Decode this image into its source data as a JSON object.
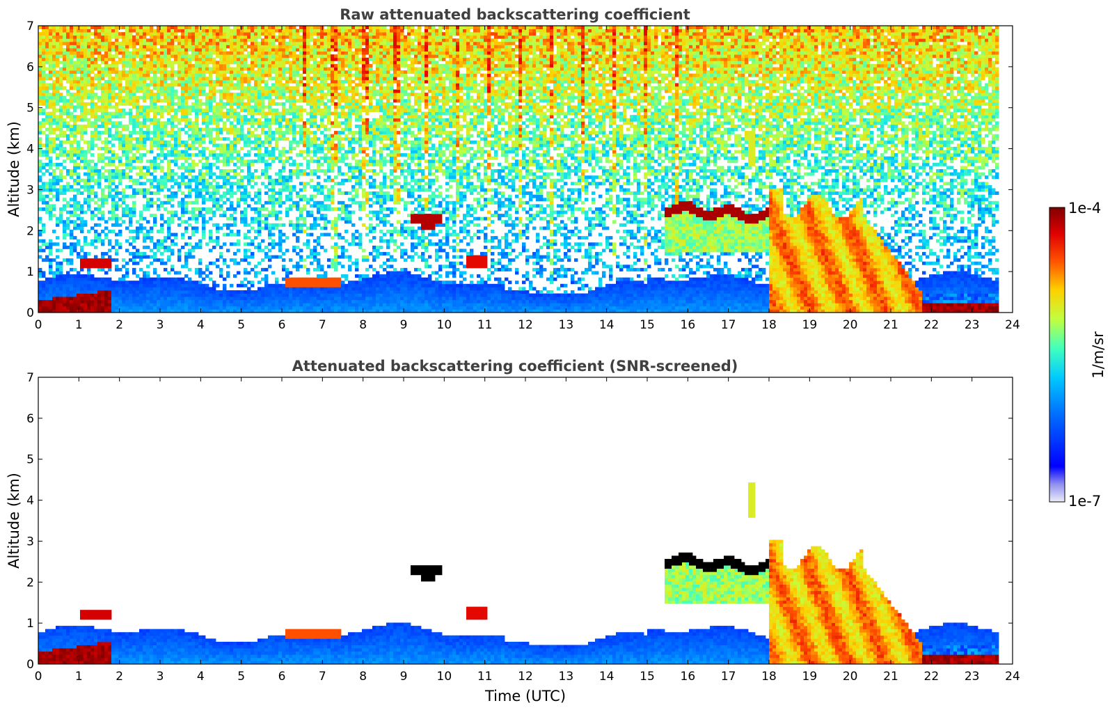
{
  "chart_data": [
    {
      "type": "heatmap",
      "title": "Raw attenuated backscattering coefficient",
      "xlabel": "",
      "ylabel": "Altitude (km)",
      "xlim": [
        0,
        24
      ],
      "ylim": [
        0,
        7
      ],
      "xticks": [
        0,
        1,
        2,
        3,
        4,
        5,
        6,
        7,
        8,
        9,
        10,
        11,
        12,
        13,
        14,
        15,
        16,
        17,
        18,
        19,
        20,
        21,
        22,
        23,
        24
      ],
      "yticks": [
        0,
        1,
        2,
        3,
        4,
        5,
        6,
        7
      ],
      "grid": false,
      "features": [
        {
          "name": "boundary layer",
          "t_start": 0,
          "t_end": 23.7,
          "alt_bottom": 0,
          "alt_top": 0.9,
          "level": "low"
        },
        {
          "name": "near-surface aerosol",
          "t_start": 0,
          "t_end": 1.8,
          "alt_bottom": 0,
          "alt_top": 0.6,
          "level": "very high"
        },
        {
          "name": "cloud",
          "t_start": 1.0,
          "t_end": 1.8,
          "alt_bottom": 1.1,
          "alt_top": 1.3,
          "level": "very high"
        },
        {
          "name": "cloud",
          "t_start": 9.2,
          "t_end": 9.9,
          "alt_bottom": 2.1,
          "alt_top": 2.4,
          "level": "very high"
        },
        {
          "name": "cloud",
          "t_start": 10.5,
          "t_end": 11.1,
          "alt_bottom": 1.1,
          "alt_top": 1.4,
          "level": "very high"
        },
        {
          "name": "elevated layer",
          "t_start": 15.4,
          "t_end": 18.0,
          "alt_bottom": 1.5,
          "alt_top": 2.7,
          "level": "medium"
        },
        {
          "name": "cloud base",
          "t_start": 15.4,
          "t_end": 18.0,
          "alt_bottom": 2.2,
          "alt_top": 2.7,
          "level": "very high"
        },
        {
          "name": "precipitation",
          "t_start": 18.0,
          "t_end": 21.8,
          "alt_bottom": 0,
          "alt_top": 3.0,
          "level": "high"
        },
        {
          "name": "surface layer",
          "t_start": 21.8,
          "t_end": 23.7,
          "alt_bottom": 0,
          "alt_top": 0.5,
          "level": "very high"
        }
      ]
    },
    {
      "type": "heatmap",
      "title": "Attenuated backscattering coefficient (SNR-screened)",
      "xlabel": "Time (UTC)",
      "ylabel": "Altitude (km)",
      "xlim": [
        0,
        24
      ],
      "ylim": [
        0,
        7
      ],
      "xticks": [
        0,
        1,
        2,
        3,
        4,
        5,
        6,
        7,
        8,
        9,
        10,
        11,
        12,
        13,
        14,
        15,
        16,
        17,
        18,
        19,
        20,
        21,
        22,
        23,
        24
      ],
      "yticks": [
        0,
        1,
        2,
        3,
        4,
        5,
        6,
        7
      ],
      "grid": false
    }
  ],
  "colorbar": {
    "label": "1/m/sr",
    "max_label": "1e-4",
    "min_label": "1e-7",
    "colormap": [
      "#ededf8",
      "#0000ff",
      "#0070ff",
      "#00c8ff",
      "#40ffc0",
      "#c0ff40",
      "#ffd000",
      "#ff5000",
      "#e00000",
      "#800000"
    ]
  }
}
